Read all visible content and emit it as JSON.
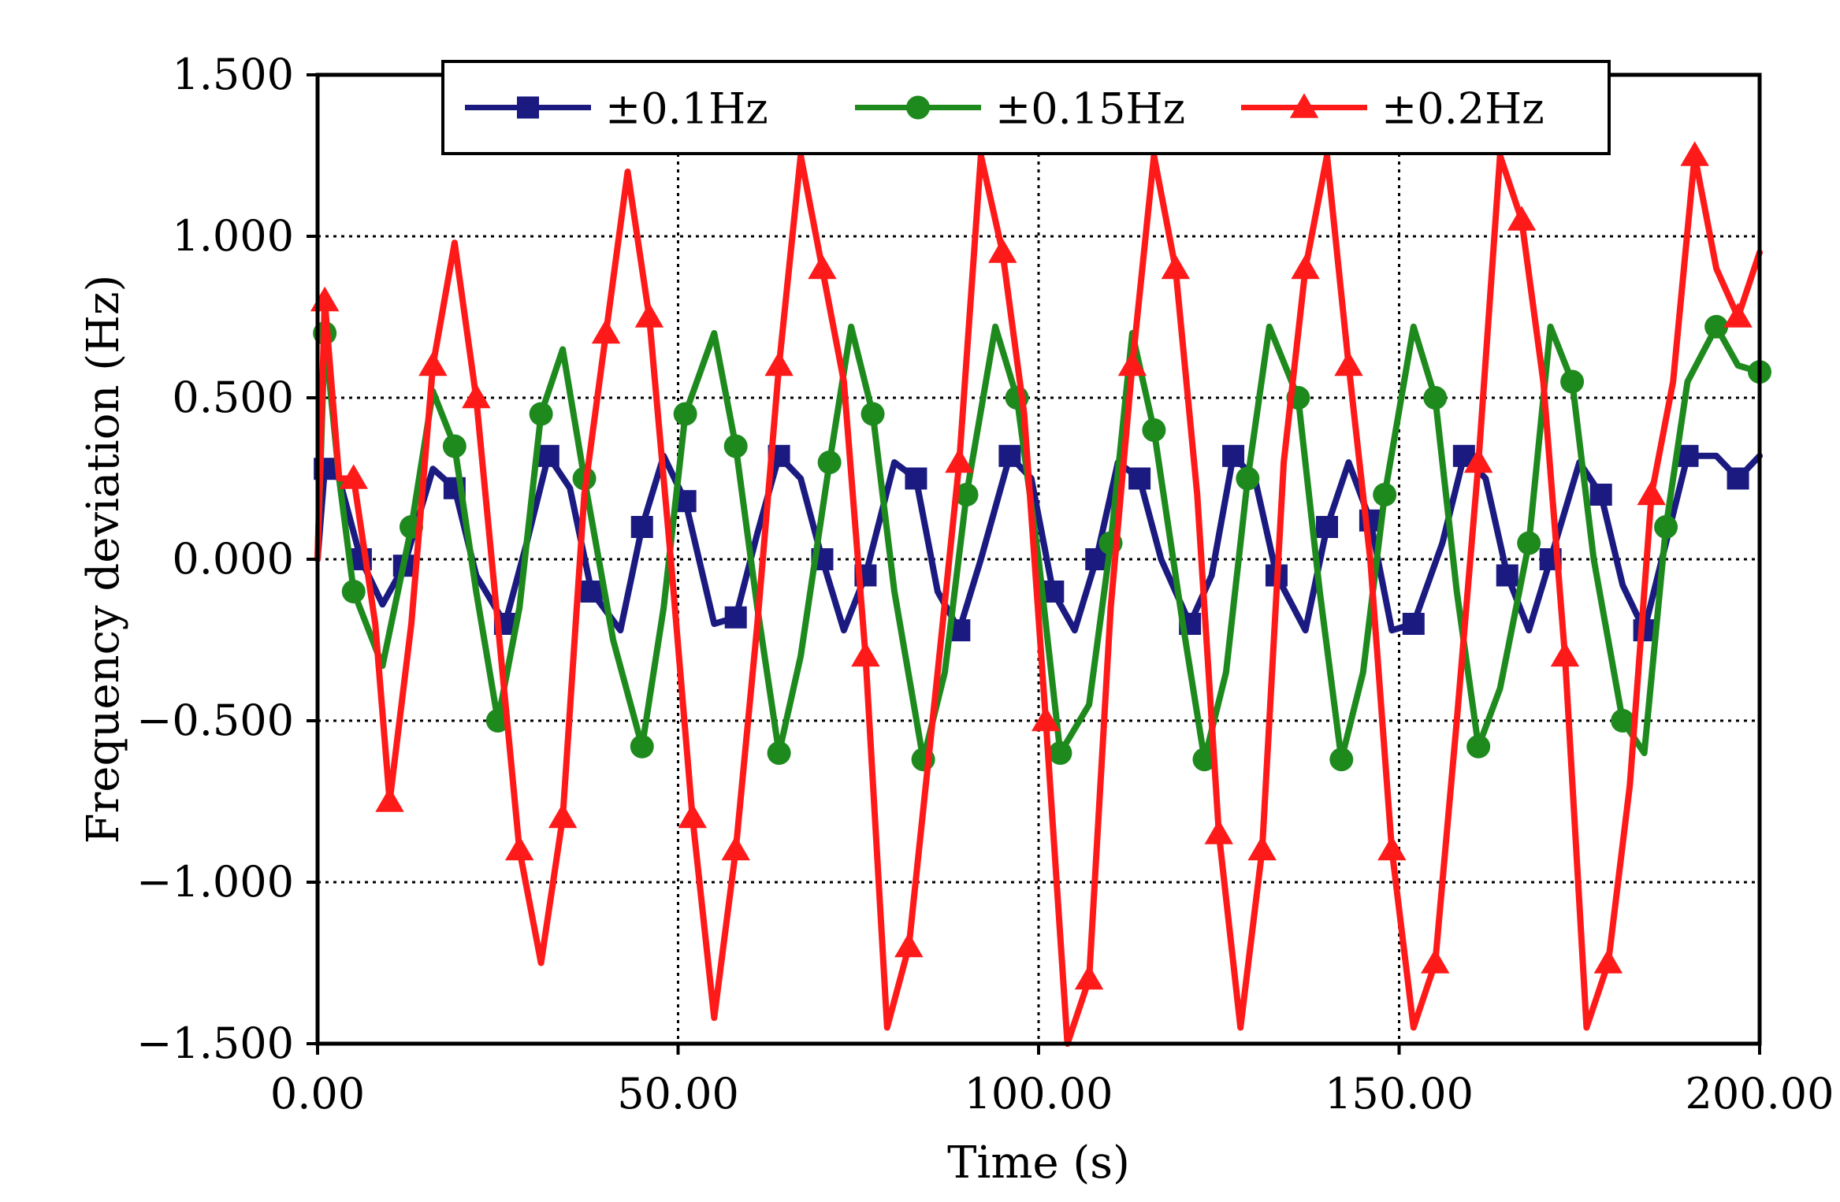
{
  "chart_data": {
    "type": "line",
    "xlabel": "Time (s)",
    "ylabel": "Frequency deviation (Hz)",
    "xlim": [
      0,
      200
    ],
    "ylim": [
      -1.5,
      1.5
    ],
    "x_ticks": [
      0,
      50,
      100,
      150,
      200
    ],
    "x_tick_labels": [
      "0.00",
      "50.00",
      "100.00",
      "150.00",
      "200.00"
    ],
    "y_ticks": [
      1.5,
      1.0,
      0.5,
      0.0,
      -0.5,
      -1.0,
      -1.5
    ],
    "y_tick_labels": [
      "1.500",
      "1.000",
      "0.500",
      "0.000",
      "−0.500",
      "−1.000",
      "−1.500"
    ],
    "grid": true,
    "legend_position": "top",
    "series": [
      {
        "name": "±0.1Hz",
        "color": "#1a1a80",
        "marker": "square",
        "x": [
          0,
          1,
          3,
          6,
          9,
          12,
          16,
          19,
          22,
          26,
          29,
          32,
          35,
          38,
          42,
          45,
          48,
          51,
          55,
          58,
          61,
          64,
          67,
          70,
          73,
          76,
          80,
          83,
          86,
          89,
          92,
          96,
          99,
          102,
          105,
          108,
          111,
          114,
          117,
          121,
          124,
          127,
          130,
          133,
          137,
          140,
          143,
          146,
          149,
          152,
          156,
          159,
          162,
          165,
          168,
          171,
          175,
          178,
          181,
          184,
          187,
          190,
          194,
          197,
          200
        ],
        "values": [
          0.0,
          0.28,
          0.25,
          0.0,
          -0.14,
          -0.02,
          0.28,
          0.22,
          -0.05,
          -0.2,
          0.05,
          0.32,
          0.22,
          -0.1,
          -0.22,
          0.1,
          0.32,
          0.18,
          -0.2,
          -0.18,
          0.08,
          0.32,
          0.25,
          0.0,
          -0.22,
          -0.05,
          0.3,
          0.25,
          -0.1,
          -0.22,
          0.0,
          0.32,
          0.25,
          -0.1,
          -0.22,
          0.0,
          0.3,
          0.25,
          0.0,
          -0.2,
          -0.05,
          0.32,
          0.25,
          -0.05,
          -0.22,
          0.1,
          0.3,
          0.12,
          -0.22,
          -0.2,
          0.05,
          0.32,
          0.25,
          -0.05,
          -0.22,
          0.0,
          0.3,
          0.2,
          -0.08,
          -0.22,
          0.05,
          0.32,
          0.32,
          0.25,
          0.32
        ]
      },
      {
        "name": "±0.15Hz",
        "color": "#1e8a1e",
        "marker": "circle",
        "x": [
          0,
          1,
          3,
          5,
          9,
          13,
          16,
          19,
          22,
          25,
          28,
          31,
          34,
          37,
          41,
          45,
          48,
          51,
          55,
          58,
          61,
          64,
          67,
          71,
          74,
          77,
          80,
          84,
          87,
          90,
          94,
          97,
          100,
          103,
          107,
          110,
          113,
          116,
          120,
          123,
          126,
          129,
          132,
          136,
          139,
          142,
          145,
          148,
          152,
          155,
          158,
          161,
          164,
          168,
          171,
          174,
          177,
          181,
          184,
          187,
          190,
          194,
          197,
          200
        ],
        "values": [
          0.0,
          0.7,
          0.25,
          -0.1,
          -0.33,
          0.1,
          0.52,
          0.35,
          -0.1,
          -0.5,
          -0.15,
          0.45,
          0.65,
          0.25,
          -0.25,
          -0.58,
          -0.15,
          0.45,
          0.7,
          0.35,
          -0.15,
          -0.6,
          -0.3,
          0.3,
          0.72,
          0.45,
          -0.1,
          -0.62,
          -0.35,
          0.2,
          0.72,
          0.5,
          0.0,
          -0.6,
          -0.45,
          0.05,
          0.7,
          0.4,
          -0.2,
          -0.62,
          -0.35,
          0.25,
          0.72,
          0.5,
          -0.1,
          -0.62,
          -0.35,
          0.2,
          0.72,
          0.5,
          -0.1,
          -0.58,
          -0.4,
          0.05,
          0.72,
          0.55,
          0.0,
          -0.5,
          -0.6,
          0.1,
          0.55,
          0.72,
          0.6,
          0.58
        ]
      },
      {
        "name": "±0.2Hz",
        "color": "#ff1a1a",
        "marker": "triangle",
        "x": [
          0,
          1,
          3,
          5,
          8,
          10,
          13,
          16,
          19,
          22,
          25,
          28,
          31,
          34,
          37,
          40,
          43,
          46,
          49,
          52,
          55,
          58,
          61,
          64,
          67,
          70,
          73,
          76,
          79,
          82,
          86,
          89,
          92,
          95,
          98,
          101,
          104,
          107,
          110,
          113,
          116,
          119,
          122,
          125,
          128,
          131,
          134,
          137,
          140,
          143,
          146,
          149,
          152,
          155,
          158,
          161,
          164,
          167,
          170,
          173,
          176,
          179,
          182,
          185,
          188,
          191,
          194,
          197,
          200
        ],
        "values": [
          0.0,
          0.8,
          0.25,
          0.25,
          -0.2,
          -0.75,
          -0.2,
          0.6,
          0.98,
          0.5,
          -0.2,
          -0.9,
          -1.25,
          -0.8,
          0.2,
          0.7,
          1.2,
          0.75,
          0.0,
          -0.8,
          -1.42,
          -0.9,
          -0.2,
          0.6,
          1.25,
          0.9,
          0.55,
          -0.3,
          -1.45,
          -1.2,
          -0.35,
          0.3,
          1.25,
          0.95,
          0.45,
          -0.5,
          -1.5,
          -1.3,
          -0.15,
          0.6,
          1.25,
          0.9,
          0.2,
          -0.85,
          -1.45,
          -0.9,
          0.3,
          0.9,
          1.25,
          0.6,
          0.0,
          -0.9,
          -1.45,
          -1.25,
          -0.5,
          0.3,
          1.25,
          1.05,
          0.55,
          -0.3,
          -1.45,
          -1.25,
          -0.7,
          0.2,
          0.55,
          1.25,
          0.9,
          0.75,
          0.95
        ]
      }
    ]
  }
}
